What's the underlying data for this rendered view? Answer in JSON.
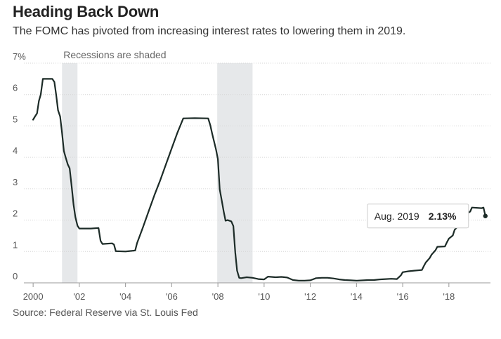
{
  "header": {
    "title": "Heading Back Down",
    "subtitle": "The FOMC has pivoted from increasing interest rates to lowering them in 2019."
  },
  "source": "Source: Federal Reserve via St. Louis Fed",
  "chart_data": {
    "type": "line",
    "title": "Heading Back Down",
    "subtitle": "The FOMC has pivoted from increasing interest rates to lowering them in 2019.",
    "xlabel": "",
    "ylabel": "",
    "xlim": [
      1999.6,
      2019.8
    ],
    "ylim": [
      0,
      7
    ],
    "y_ticks": [
      0,
      1,
      2,
      3,
      4,
      5,
      6,
      7
    ],
    "y_tick_labels": [
      "0",
      "1",
      "2",
      "3",
      "4",
      "5",
      "6",
      "7%"
    ],
    "x_ticks": [
      2000,
      2002,
      2004,
      2006,
      2008,
      2010,
      2012,
      2014,
      2016,
      2018
    ],
    "x_tick_labels": [
      "2000",
      "'02",
      "'04",
      "'06",
      "'08",
      "'10",
      "'12",
      "'14",
      "'16",
      "'18"
    ],
    "grid": true,
    "annotation": "Recessions are shaded",
    "recessions": [
      {
        "start": 2001.25,
        "end": 2001.92
      },
      {
        "start": 2007.97,
        "end": 2009.5
      }
    ],
    "line_color": "#1c2b27",
    "recession_color": "#e6e8ea",
    "series": [
      {
        "values": [
          [
            2000.0,
            5.2
          ],
          [
            2000.08,
            5.3
          ],
          [
            2000.17,
            5.4
          ],
          [
            2000.25,
            5.8
          ],
          [
            2000.33,
            6.0
          ],
          [
            2000.42,
            6.5
          ],
          [
            2000.5,
            6.5
          ],
          [
            2000.83,
            6.5
          ],
          [
            2000.92,
            6.4
          ],
          [
            2001.0,
            5.98
          ],
          [
            2001.08,
            5.5
          ],
          [
            2001.17,
            5.3
          ],
          [
            2001.25,
            4.8
          ],
          [
            2001.33,
            4.2
          ],
          [
            2001.42,
            3.97
          ],
          [
            2001.5,
            3.77
          ],
          [
            2001.58,
            3.65
          ],
          [
            2001.67,
            3.07
          ],
          [
            2001.75,
            2.49
          ],
          [
            2001.83,
            2.09
          ],
          [
            2001.92,
            1.82
          ],
          [
            2002.0,
            1.73
          ],
          [
            2002.5,
            1.73
          ],
          [
            2002.83,
            1.75
          ],
          [
            2002.92,
            1.34
          ],
          [
            2003.0,
            1.24
          ],
          [
            2003.42,
            1.26
          ],
          [
            2003.5,
            1.22
          ],
          [
            2003.58,
            1.01
          ],
          [
            2004.0,
            1.0
          ],
          [
            2004.42,
            1.03
          ],
          [
            2004.5,
            1.27
          ],
          [
            2004.75,
            1.76
          ],
          [
            2005.0,
            2.28
          ],
          [
            2005.25,
            2.79
          ],
          [
            2005.5,
            3.26
          ],
          [
            2005.75,
            3.78
          ],
          [
            2006.0,
            4.29
          ],
          [
            2006.25,
            4.79
          ],
          [
            2006.5,
            5.24
          ],
          [
            2007.0,
            5.25
          ],
          [
            2007.58,
            5.24
          ],
          [
            2007.67,
            5.02
          ],
          [
            2007.75,
            4.76
          ],
          [
            2007.92,
            4.24
          ],
          [
            2008.0,
            3.94
          ],
          [
            2008.08,
            2.98
          ],
          [
            2008.17,
            2.61
          ],
          [
            2008.25,
            2.28
          ],
          [
            2008.33,
            1.98
          ],
          [
            2008.42,
            2.0
          ],
          [
            2008.58,
            1.96
          ],
          [
            2008.67,
            1.81
          ],
          [
            2008.75,
            0.97
          ],
          [
            2008.83,
            0.39
          ],
          [
            2008.92,
            0.16
          ],
          [
            2009.0,
            0.15
          ],
          [
            2009.25,
            0.18
          ],
          [
            2009.5,
            0.16
          ],
          [
            2009.75,
            0.12
          ],
          [
            2010.0,
            0.11
          ],
          [
            2010.17,
            0.2
          ],
          [
            2010.5,
            0.18
          ],
          [
            2010.75,
            0.19
          ],
          [
            2011.0,
            0.17
          ],
          [
            2011.25,
            0.09
          ],
          [
            2011.5,
            0.07
          ],
          [
            2011.75,
            0.07
          ],
          [
            2012.0,
            0.08
          ],
          [
            2012.25,
            0.15
          ],
          [
            2012.5,
            0.16
          ],
          [
            2012.75,
            0.16
          ],
          [
            2013.0,
            0.14
          ],
          [
            2013.25,
            0.11
          ],
          [
            2013.5,
            0.09
          ],
          [
            2013.75,
            0.08
          ],
          [
            2014.0,
            0.07
          ],
          [
            2014.5,
            0.09
          ],
          [
            2014.75,
            0.09
          ],
          [
            2015.0,
            0.11
          ],
          [
            2015.5,
            0.13
          ],
          [
            2015.75,
            0.12
          ],
          [
            2015.92,
            0.24
          ],
          [
            2016.0,
            0.34
          ],
          [
            2016.25,
            0.37
          ],
          [
            2016.5,
            0.39
          ],
          [
            2016.83,
            0.41
          ],
          [
            2016.92,
            0.54
          ],
          [
            2017.0,
            0.65
          ],
          [
            2017.17,
            0.79
          ],
          [
            2017.25,
            0.9
          ],
          [
            2017.42,
            1.04
          ],
          [
            2017.5,
            1.15
          ],
          [
            2017.83,
            1.16
          ],
          [
            2017.92,
            1.3
          ],
          [
            2018.0,
            1.41
          ],
          [
            2018.17,
            1.51
          ],
          [
            2018.25,
            1.69
          ],
          [
            2018.42,
            1.82
          ],
          [
            2018.58,
            1.91
          ],
          [
            2018.75,
            2.19
          ],
          [
            2018.92,
            2.27
          ],
          [
            2019.0,
            2.4
          ],
          [
            2019.42,
            2.38
          ],
          [
            2019.5,
            2.4
          ],
          [
            2019.58,
            2.13
          ]
        ]
      }
    ],
    "tooltip": {
      "label": "Aug. 2019",
      "value": "2.13%",
      "x": 2019.58,
      "y": 2.13
    }
  }
}
